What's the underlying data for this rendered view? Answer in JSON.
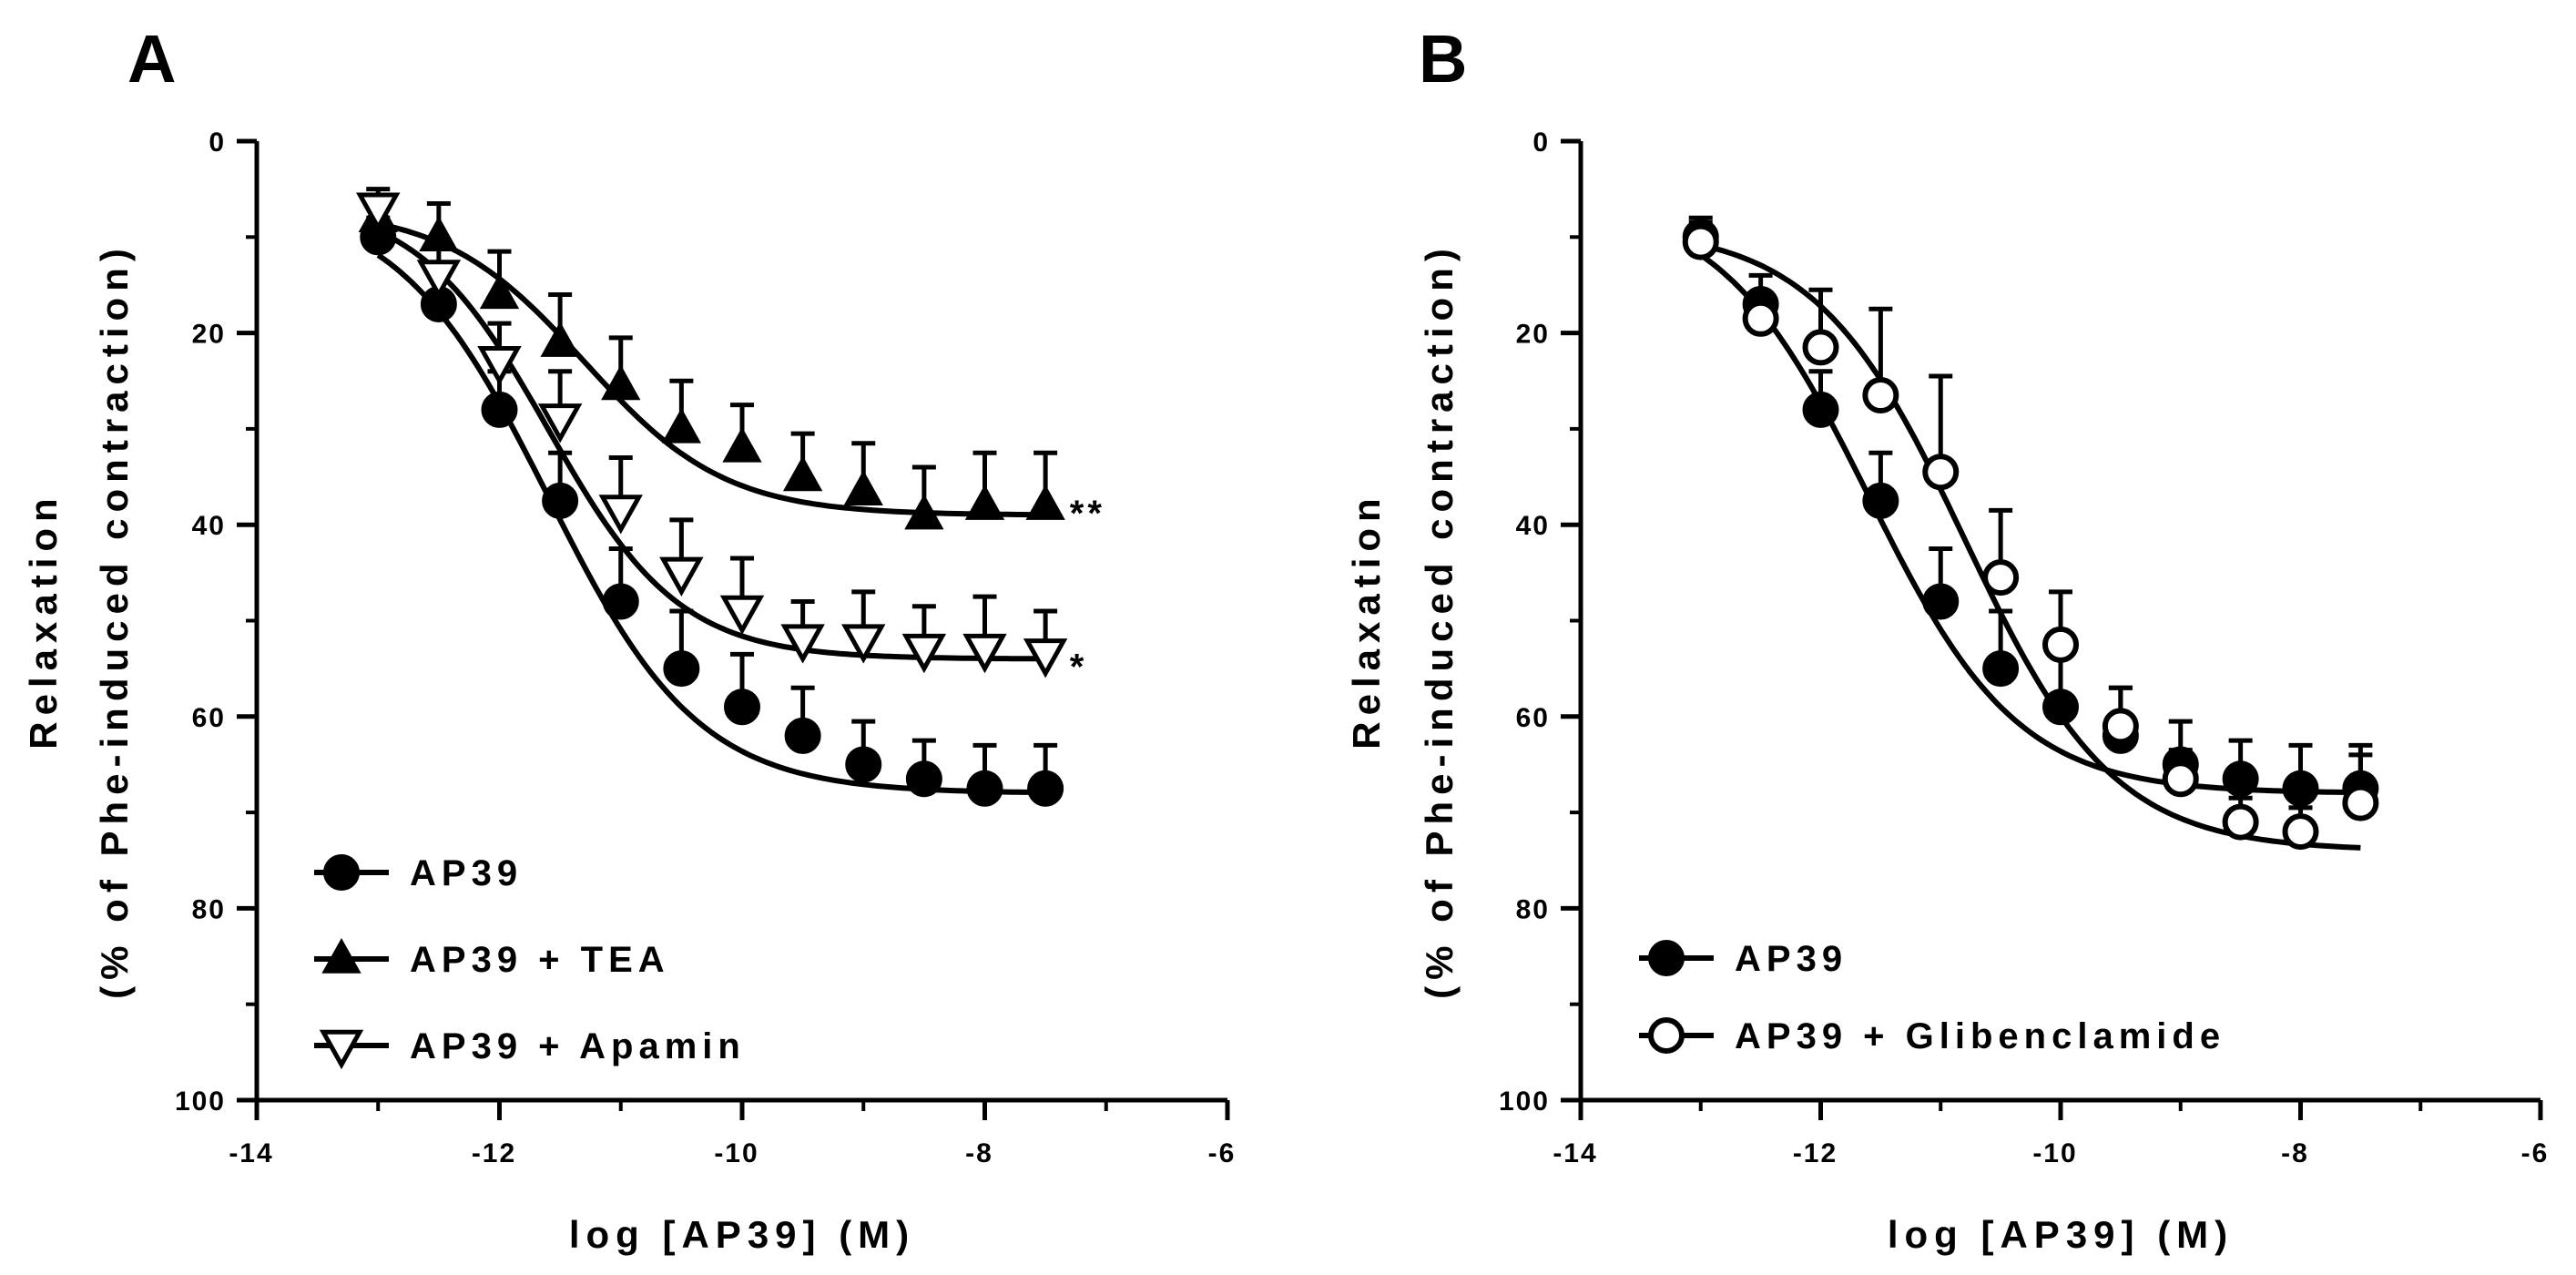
{
  "chart_data": [
    {
      "panel": "A",
      "type": "scatter",
      "xlabel": "log [AP39] (M)",
      "ylabel_line1": "Relaxation",
      "ylabel_line2": "(% of Phe-induced contraction)",
      "xlim": [
        -14,
        -6
      ],
      "ylim": [
        0,
        100
      ],
      "y_inverted": true,
      "xticks": [
        -14,
        -12,
        -10,
        -8,
        -6
      ],
      "xtick_labels": [
        "-14",
        "-12",
        "-10",
        "-8",
        "-6"
      ],
      "yticks": [
        0,
        20,
        40,
        60,
        80,
        100
      ],
      "ytick_labels": [
        "0",
        "20",
        "40",
        "60",
        "80",
        "100"
      ],
      "grid": false,
      "legend_position": "bottom-left",
      "series": [
        {
          "name": "AP39",
          "marker": "filled-circle",
          "x": [
            -13,
            -12.5,
            -12,
            -11.5,
            -11,
            -10.5,
            -10,
            -9.5,
            -9,
            -8.5,
            -8,
            -7.5
          ],
          "y": [
            10,
            17,
            28,
            37.5,
            48,
            55,
            59,
            62,
            65,
            66.5,
            67.5,
            67.5
          ],
          "err": [
            2,
            3,
            4,
            5,
            5.5,
            6,
            5.5,
            5,
            4.5,
            4,
            4.5,
            4.5
          ],
          "fit": {
            "top": 6,
            "bottom": 68,
            "logec50": -11.6,
            "hill": 0.7
          }
        },
        {
          "name": "AP39 + TEA",
          "marker": "filled-triangle",
          "x": [
            -13,
            -12.5,
            -12,
            -11.5,
            -11,
            -10.5,
            -10,
            -9.5,
            -9,
            -8.5,
            -8,
            -7.5
          ],
          "y": [
            8,
            10,
            16,
            21,
            25.5,
            30,
            32,
            35,
            36.5,
            39,
            38,
            38
          ],
          "err": [
            2,
            3.5,
            4.5,
            5,
            5,
            5,
            4.5,
            4.5,
            5,
            5,
            5.5,
            5.5
          ],
          "fit": {
            "top": 7,
            "bottom": 39,
            "logec50": -11.3,
            "hill": 0.75
          }
        },
        {
          "name": "AP39 + Apamin",
          "marker": "open-inverted-triangle",
          "x": [
            -13,
            -12.5,
            -12,
            -11.5,
            -11,
            -10.5,
            -10,
            -9.5,
            -9,
            -8.5,
            -8,
            -7.5
          ],
          "y": [
            7,
            14,
            23,
            29,
            38.5,
            45,
            49,
            52,
            52,
            53,
            53,
            53.5
          ],
          "err": [
            2,
            3,
            4,
            5,
            5.5,
            5.5,
            5.5,
            4,
            5,
            4.5,
            5.5,
            4.5
          ],
          "fit": {
            "top": 6,
            "bottom": 54,
            "logec50": -11.6,
            "hill": 0.8
          }
        }
      ],
      "annotations": [
        {
          "text": "**",
          "x": -7.3,
          "y": 38
        },
        {
          "text": "*",
          "x": -7.3,
          "y": 54
        }
      ]
    },
    {
      "panel": "B",
      "type": "scatter",
      "xlabel": "log [AP39] (M)",
      "ylabel_line1": "Relaxation",
      "ylabel_line2": "(% of Phe-induced contraction)",
      "xlim": [
        -14,
        -6
      ],
      "ylim": [
        0,
        100
      ],
      "y_inverted": true,
      "xticks": [
        -14,
        -12,
        -10,
        -8,
        -6
      ],
      "xtick_labels": [
        "-14",
        "-12",
        "-10",
        "-8",
        "-6"
      ],
      "yticks": [
        0,
        20,
        40,
        60,
        80,
        100
      ],
      "ytick_labels": [
        "0",
        "20",
        "40",
        "60",
        "80",
        "100"
      ],
      "grid": false,
      "legend_position": "bottom-left",
      "series": [
        {
          "name": "AP39",
          "marker": "filled-circle",
          "x": [
            -13,
            -12.5,
            -12,
            -11.5,
            -11,
            -10.5,
            -10,
            -9.5,
            -9,
            -8.5,
            -8,
            -7.5
          ],
          "y": [
            10,
            17,
            28,
            37.5,
            48,
            55,
            59,
            62,
            65,
            66.5,
            67.5,
            67.5
          ],
          "err": [
            2,
            3,
            4,
            5,
            5.5,
            6,
            5.5,
            5,
            4.5,
            4,
            4.5,
            4.5
          ],
          "fit": {
            "top": 6,
            "bottom": 68,
            "logec50": -11.6,
            "hill": 0.7
          }
        },
        {
          "name": "AP39 + Glibenclamide",
          "marker": "open-circle",
          "x": [
            -13,
            -12.5,
            -12,
            -11.5,
            -11,
            -10.5,
            -10,
            -9.5,
            -9,
            -8.5,
            -8,
            -7.5
          ],
          "y": [
            10.5,
            18.5,
            21.5,
            26.5,
            34.5,
            45.5,
            52.5,
            61,
            66.5,
            71,
            72,
            69
          ],
          "err": [
            2,
            2.5,
            6,
            9,
            10,
            7,
            5.5,
            4,
            3,
            2.5,
            2.5,
            5
          ],
          "fit": {
            "top": 9,
            "bottom": 74,
            "logec50": -10.8,
            "hill": 0.7
          }
        }
      ],
      "annotations": []
    }
  ]
}
